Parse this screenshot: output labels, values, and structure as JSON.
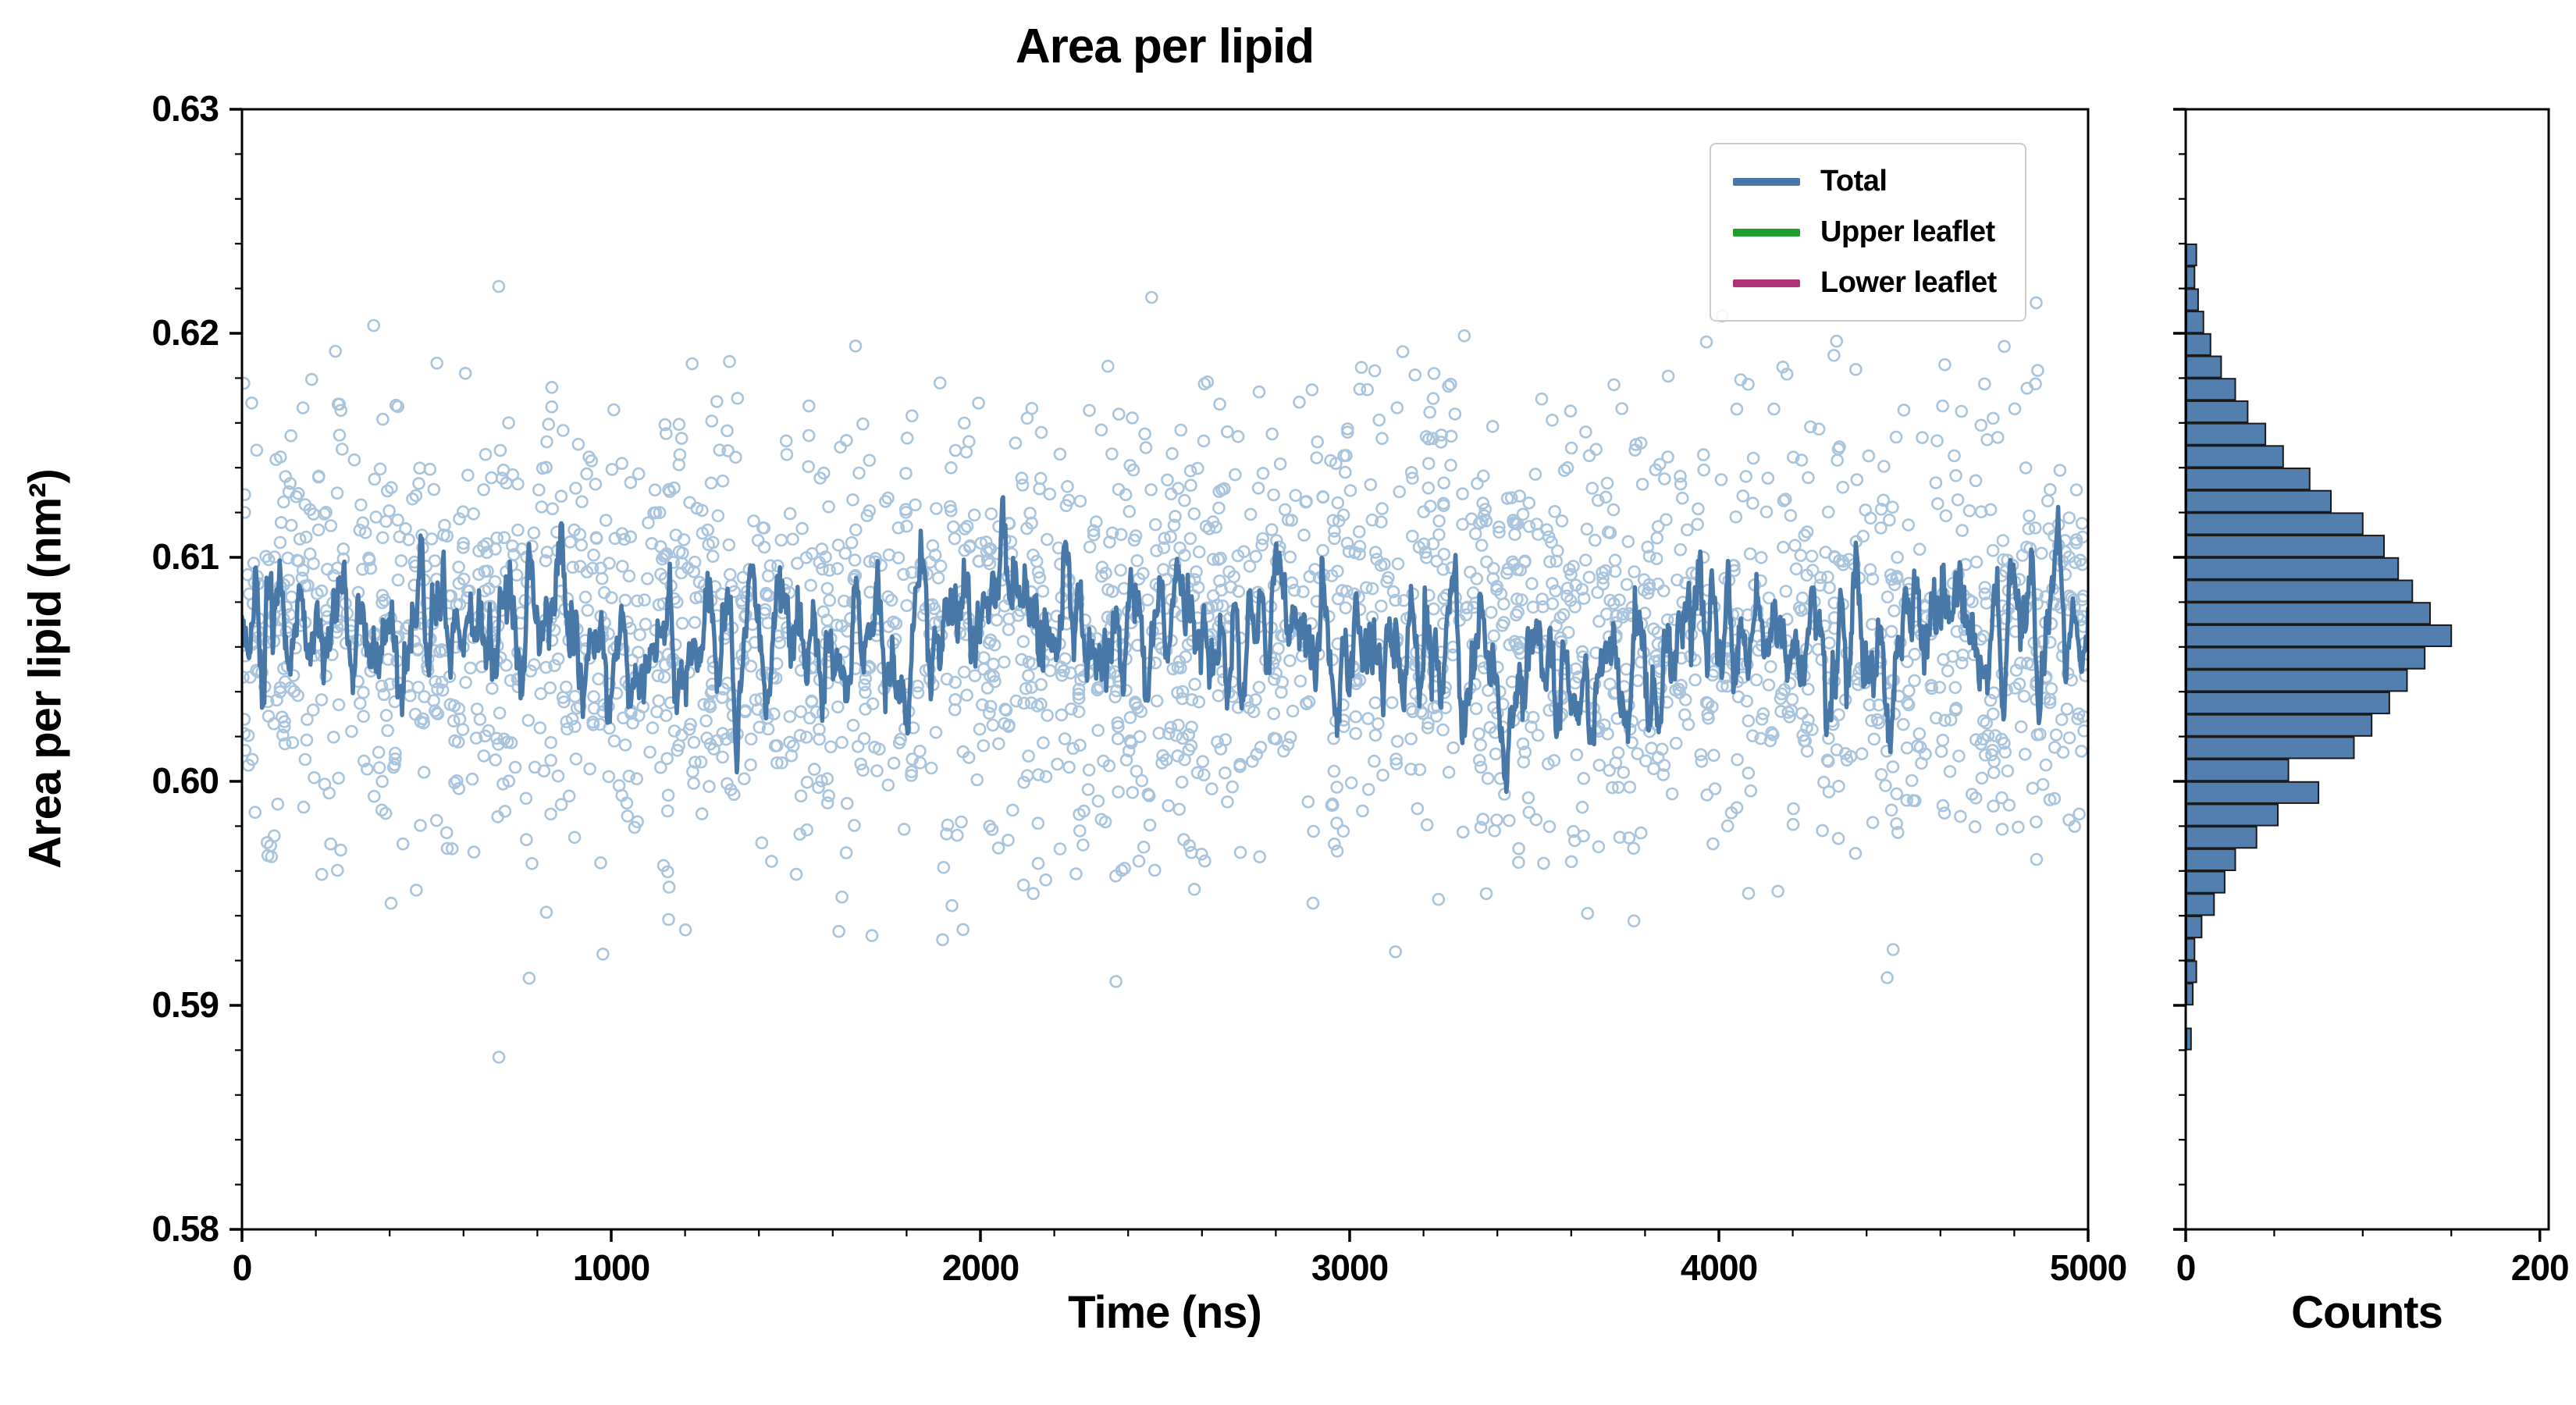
{
  "chart_data": [
    {
      "type": "line",
      "title": "Area per lipid",
      "xlabel": "Time (ns)",
      "ylabel": "Area per lipid (nm²)",
      "xlim": [
        0,
        5000
      ],
      "ylim": [
        0.58,
        0.63
      ],
      "x_ticks": [
        0,
        1000,
        2000,
        3000,
        4000,
        5000
      ],
      "y_ticks": [
        0.58,
        0.59,
        0.6,
        0.61,
        0.62,
        0.63
      ],
      "x_minor_step": 200,
      "y_minor_step": 0.002,
      "grid": false,
      "legend_position": "upper-right",
      "series": [
        {
          "name": "Total",
          "style": "thick-line",
          "color": "#4878a8",
          "summary": {
            "mean": 0.6065,
            "fluctuation_std": 0.0019,
            "approx_min": 0.599,
            "approx_max": 0.6125,
            "n_points": 2400,
            "seed": 1234
          }
        },
        {
          "name": "samples",
          "style": "open-circle-scatter",
          "color": "#a9c4dd",
          "summary": {
            "mean": 0.6065,
            "std": 0.005,
            "range": [
              0.5875,
              0.6235
            ],
            "n_points": 2600,
            "seed": 99
          }
        },
        {
          "name": "Upper leaflet",
          "style": "line",
          "color": "#1f9e2c"
        },
        {
          "name": "Lower leaflet",
          "style": "line",
          "color": "#b23278"
        }
      ]
    },
    {
      "type": "histogram-horizontal",
      "xlabel": "Counts",
      "xlim": [
        0,
        205
      ],
      "x_ticks": [
        0,
        200
      ],
      "x_minor_step": 50,
      "bar_fill": "#527fae",
      "bar_edge": "#1b1b1b",
      "bin_width": 0.001,
      "bin_centers": [
        0.5885,
        0.5895,
        0.5905,
        0.5915,
        0.5925,
        0.5935,
        0.5945,
        0.5955,
        0.5965,
        0.5975,
        0.5985,
        0.5995,
        0.6005,
        0.6015,
        0.6025,
        0.6035,
        0.6045,
        0.6055,
        0.6065,
        0.6075,
        0.6085,
        0.6095,
        0.6105,
        0.6115,
        0.6125,
        0.6135,
        0.6145,
        0.6155,
        0.6165,
        0.6175,
        0.6185,
        0.6195,
        0.6205,
        0.6215,
        0.6225,
        0.6235
      ],
      "counts": [
        3,
        0,
        4,
        6,
        5,
        9,
        16,
        22,
        28,
        40,
        52,
        75,
        58,
        95,
        105,
        115,
        125,
        135,
        150,
        138,
        128,
        120,
        112,
        100,
        82,
        70,
        55,
        45,
        35,
        28,
        20,
        14,
        10,
        7,
        5,
        6
      ]
    }
  ],
  "legend": {
    "items": [
      {
        "label": "Total",
        "color": "#4878a8"
      },
      {
        "label": "Upper leaflet",
        "color": "#1f9e2c"
      },
      {
        "label": "Lower leaflet",
        "color": "#b23278"
      }
    ]
  }
}
